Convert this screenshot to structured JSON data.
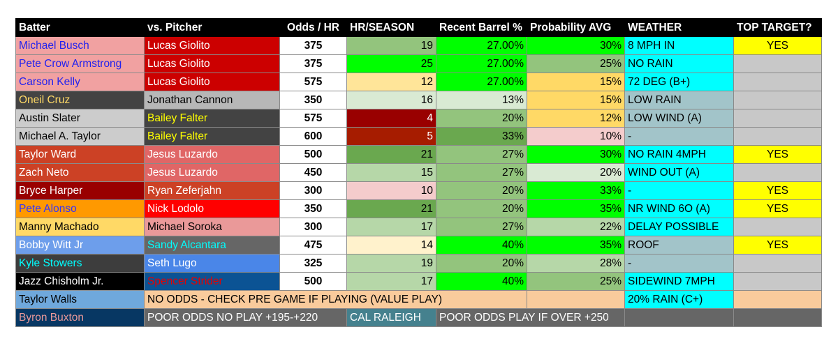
{
  "headers": [
    "Batter",
    "vs. Pitcher",
    "Odds / HR",
    "HR/SEASON",
    "Recent Barrel %",
    "Probability AVG",
    "WEATHER",
    "TOP TARGET?"
  ],
  "rows": [
    {
      "batter": "Michael Busch",
      "pitcher": "Lucas Giolito",
      "odds": "375",
      "hr": "19",
      "barrel": "27.00%",
      "prob": "30%",
      "weather": "8 MPH IN",
      "target": "YES",
      "bg": {
        "batter": "#f1a1a1",
        "pitcher": "#cc0000",
        "hr": "#93c47d",
        "barrel": "#00ff00",
        "prob": "#00ff00",
        "weather": "#00ffff",
        "target": "#ffff00"
      },
      "fg": {
        "batter": "#2222ee",
        "pitcher": "#ffffff"
      }
    },
    {
      "batter": "Pete Crow Armstrong",
      "pitcher": "Lucas Giolito",
      "odds": "375",
      "hr": "25",
      "barrel": "27.00%",
      "prob": "25%",
      "weather": "NO RAIN",
      "target": "",
      "bg": {
        "batter": "#f1a1a1",
        "pitcher": "#cc0000",
        "hr": "#00ff00",
        "barrel": "#00ff00",
        "prob": "#93c47d",
        "weather": "#00ffff",
        "target": "#c8c8c8"
      },
      "fg": {
        "batter": "#2222ee",
        "pitcher": "#ffffff"
      }
    },
    {
      "batter": "Carson Kelly",
      "pitcher": "Lucas Giolito",
      "odds": "575",
      "hr": "12",
      "barrel": "27.00%",
      "prob": "15%",
      "weather": "72 DEG (B+)",
      "target": "",
      "bg": {
        "batter": "#f1a1a1",
        "pitcher": "#cc0000",
        "hr": "#ffe599",
        "barrel": "#00ff00",
        "prob": "#ffd966",
        "weather": "#00ffff",
        "target": "#c8c8c8"
      },
      "fg": {
        "batter": "#2222ee",
        "pitcher": "#ffffff"
      }
    },
    {
      "batter": "Oneil Cruz",
      "pitcher": "Jonathan Cannon",
      "odds": "350",
      "hr": "16",
      "barrel": "13%",
      "prob": "15%",
      "weather": "LOW RAIN",
      "target": "",
      "bg": {
        "batter": "#434343",
        "pitcher": "#b7b7b7",
        "hr": "#d9ead3",
        "barrel": "#d9ead3",
        "prob": "#ffd966",
        "weather": "#a2c4c9",
        "target": "#c8c8c8"
      },
      "fg": {
        "batter": "#ffd966",
        "pitcher": "#000000"
      }
    },
    {
      "batter": "Austin Slater",
      "pitcher": "Bailey Falter",
      "odds": "575",
      "hr": "4",
      "barrel": "20%",
      "prob": "12%",
      "weather": "LOW WIND (A)",
      "target": "",
      "bg": {
        "batter": "#cccccc",
        "pitcher": "#434343",
        "hr": "#990000",
        "barrel": "#93c47d",
        "prob": "#ffd966",
        "weather": "#a2c4c9",
        "target": "#c8c8c8"
      },
      "fg": {
        "batter": "#000000",
        "pitcher": "#ffff00",
        "hr": "#ffffff"
      }
    },
    {
      "batter": "Michael A. Taylor",
      "pitcher": "Bailey Falter",
      "odds": "600",
      "hr": "5",
      "barrel": "33%",
      "prob": "10%",
      "weather": "-",
      "target": "",
      "bg": {
        "batter": "#cccccc",
        "pitcher": "#434343",
        "hr": "#a61c00",
        "barrel": "#6aa84f",
        "prob": "#f4cccc",
        "weather": "#a2c4c9",
        "target": "#c8c8c8"
      },
      "fg": {
        "batter": "#000000",
        "pitcher": "#ffff00",
        "hr": "#ffffff"
      }
    },
    {
      "batter": "Taylor Ward",
      "pitcher": "Jesus Luzardo",
      "odds": "500",
      "hr": "21",
      "barrel": "27%",
      "prob": "30%",
      "weather": "NO RAIN 4MPH",
      "target": "YES",
      "bg": {
        "batter": "#cc4125",
        "pitcher": "#e06666",
        "hr": "#6aa84f",
        "barrel": "#93c47d",
        "prob": "#00ff00",
        "weather": "#00ffff",
        "target": "#ffff00"
      },
      "fg": {
        "batter": "#ffffff",
        "pitcher": "#ffffff"
      }
    },
    {
      "batter": "Zach Neto",
      "pitcher": "Jesus Luzardo",
      "odds": "450",
      "hr": "15",
      "barrel": "27%",
      "prob": "20%",
      "weather": "WIND OUT (A)",
      "target": "",
      "bg": {
        "batter": "#cc4125",
        "pitcher": "#e06666",
        "hr": "#b6d7a8",
        "barrel": "#93c47d",
        "prob": "#d9ead3",
        "weather": "#00ffff",
        "target": "#c8c8c8"
      },
      "fg": {
        "batter": "#ffffff",
        "pitcher": "#ffffff"
      }
    },
    {
      "batter": "Bryce Harper",
      "pitcher": "Ryan Zeferjahn",
      "odds": "300",
      "hr": "10",
      "barrel": "20%",
      "prob": "33%",
      "weather": "-",
      "target": "YES",
      "bg": {
        "batter": "#990000",
        "pitcher": "#cc4125",
        "hr": "#f4cccc",
        "barrel": "#93c47d",
        "prob": "#00ff00",
        "weather": "#00ffff",
        "target": "#ffff00"
      },
      "fg": {
        "batter": "#ffffff",
        "pitcher": "#ffffff"
      }
    },
    {
      "batter": "Pete Alonso",
      "pitcher": "Nick Lodolo",
      "odds": "350",
      "hr": "21",
      "barrel": "20%",
      "prob": "35%",
      "weather": "NR WIND 6O (A)",
      "target": "YES",
      "bg": {
        "batter": "#ff9900",
        "pitcher": "#ff0000",
        "hr": "#6aa84f",
        "barrel": "#93c47d",
        "prob": "#00ff00",
        "weather": "#00ffff",
        "target": "#ffff00"
      },
      "fg": {
        "batter": "#3333ff",
        "pitcher": "#ffffff"
      }
    },
    {
      "batter": "Manny Machado",
      "pitcher": "Michael Soroka",
      "odds": "300",
      "hr": "17",
      "barrel": "27%",
      "prob": "22%",
      "weather": "DELAY POSSIBLE",
      "target": "",
      "bg": {
        "batter": "#ffd966",
        "pitcher": "#ea9999",
        "hr": "#b6d7a8",
        "barrel": "#93c47d",
        "prob": "#b6d7a8",
        "weather": "#00ffff",
        "target": "#c8c8c8"
      },
      "fg": {
        "batter": "#000000",
        "pitcher": "#000000"
      }
    },
    {
      "batter": "Bobby Witt Jr",
      "pitcher": "Sandy Alcantara",
      "odds": "475",
      "hr": "14",
      "barrel": "40%",
      "prob": "35%",
      "weather": "ROOF",
      "target": "YES",
      "bg": {
        "batter": "#6d9eeb",
        "pitcher": "#666666",
        "hr": "#fff2cc",
        "barrel": "#00ff00",
        "prob": "#00ff00",
        "weather": "#a2c4c9",
        "target": "#ffff00"
      },
      "fg": {
        "batter": "#ffffff",
        "pitcher": "#00ffff"
      }
    },
    {
      "batter": "Kyle Stowers",
      "pitcher": "Seth Lugo",
      "odds": "325",
      "hr": "19",
      "barrel": "20%",
      "prob": "28%",
      "weather": "-",
      "target": "",
      "bg": {
        "batter": "#3d3d3d",
        "pitcher": "#4a86e8",
        "hr": "#b6d7a8",
        "barrel": "#93c47d",
        "prob": "#b6d7a8",
        "weather": "#a2c4c9",
        "target": "#c8c8c8"
      },
      "fg": {
        "batter": "#00ffff",
        "pitcher": "#ffffff"
      }
    },
    {
      "batter": "Jazz Chisholm Jr.",
      "pitcher": "Spencer Strider",
      "odds": "500",
      "hr": "17",
      "barrel": "40%",
      "prob": "25%",
      "weather": "SIDEWIND 7MPH",
      "target": "",
      "bg": {
        "batter": "#000000",
        "pitcher": "#0b5394",
        "hr": "#b6d7a8",
        "barrel": "#00ff00",
        "prob": "#93c47d",
        "weather": "#00ffff",
        "target": "#c8c8c8"
      },
      "fg": {
        "batter": "#ffffff",
        "pitcher": "#e60000"
      }
    }
  ],
  "special_rows": [
    {
      "batter": "Taylor Walls",
      "note": "NO ODDS - CHECK PRE GAME IF PLAYING (VALUE PLAY)",
      "weather": "20% RAIN (C+)",
      "bg": {
        "batter": "#6fa8dc",
        "note": "#f9cb9c",
        "weather": "#00ffff"
      },
      "fg": {
        "batter": "#000000"
      }
    },
    {
      "batter": "Byron Buxton",
      "note": "POOR ODDS NO PLAY +195-+220",
      "extra": "CAL RALEIGH",
      "note2": "POOR ODDS PLAY IF OVER +250",
      "bg": {
        "batter": "#073763",
        "note": "#666666",
        "extra": "#45818e",
        "note2": "#666666"
      },
      "fg": {
        "batter": "#ea9999"
      }
    }
  ]
}
